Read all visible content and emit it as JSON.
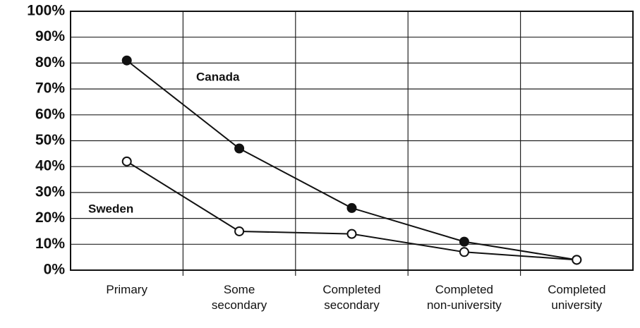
{
  "chart_data": {
    "type": "line",
    "categories": [
      "Primary",
      "Some\nsecondary",
      "Completed\nsecondary",
      "Completed\nnon-university",
      "Completed\nuniversity"
    ],
    "series": [
      {
        "name": "Canada",
        "color": "#111111",
        "marker_fill": "#111111",
        "values": [
          81,
          47,
          24,
          11,
          4
        ]
      },
      {
        "name": "Sweden",
        "color": "#111111",
        "marker_fill": "#ffffff",
        "values": [
          42,
          15,
          14,
          7,
          4
        ]
      }
    ],
    "ylim": [
      0,
      100
    ],
    "yticks": [
      {
        "value": 0,
        "label": "0%"
      },
      {
        "value": 10,
        "label": "10%"
      },
      {
        "value": 20,
        "label": "20%"
      },
      {
        "value": 30,
        "label": "30%"
      },
      {
        "value": 40,
        "label": "40%"
      },
      {
        "value": 50,
        "label": "50%"
      },
      {
        "value": 60,
        "label": "60%"
      },
      {
        "value": 70,
        "label": "70%"
      },
      {
        "value": 80,
        "label": "80%"
      },
      {
        "value": 90,
        "label": "90%"
      },
      {
        "value": 100,
        "label": "100%"
      }
    ],
    "grid": true
  }
}
